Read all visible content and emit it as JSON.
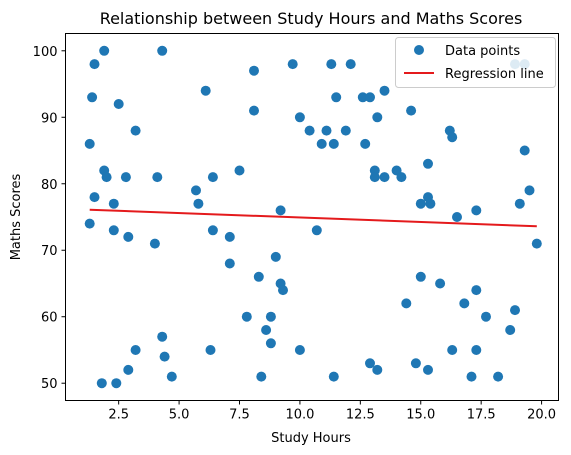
{
  "chart_data": {
    "type": "scatter",
    "title": "Relationship between Study Hours and Maths Scores",
    "xlabel": "Study Hours",
    "ylabel": "Maths Scores",
    "xlim": [
      0.3,
      20.7
    ],
    "ylim": [
      47.4,
      102.6
    ],
    "xticks": [
      2.5,
      5.0,
      7.5,
      10.0,
      12.5,
      15.0,
      17.5,
      20.0
    ],
    "xtick_labels": [
      "2.5",
      "5.0",
      "7.5",
      "10.0",
      "12.5",
      "15.0",
      "17.5",
      "20.0"
    ],
    "yticks": [
      50,
      60,
      70,
      80,
      90,
      100
    ],
    "ytick_labels": [
      "50",
      "60",
      "70",
      "80",
      "90",
      "100"
    ],
    "grid": false,
    "legend_position": "top-right",
    "series": [
      {
        "name": "Data points",
        "kind": "scatter",
        "color": "#1f77b4",
        "points": [
          [
            1.3,
            86
          ],
          [
            1.3,
            74
          ],
          [
            1.4,
            93
          ],
          [
            1.5,
            98
          ],
          [
            1.5,
            78
          ],
          [
            1.8,
            50
          ],
          [
            1.9,
            100
          ],
          [
            1.9,
            82
          ],
          [
            2.0,
            81
          ],
          [
            2.3,
            77
          ],
          [
            2.3,
            73
          ],
          [
            2.4,
            50
          ],
          [
            2.5,
            92
          ],
          [
            2.8,
            81
          ],
          [
            2.9,
            72
          ],
          [
            2.9,
            52
          ],
          [
            3.2,
            88
          ],
          [
            3.2,
            55
          ],
          [
            4.0,
            71
          ],
          [
            4.1,
            81
          ],
          [
            4.3,
            100
          ],
          [
            4.3,
            57
          ],
          [
            4.4,
            54
          ],
          [
            4.7,
            51
          ],
          [
            5.7,
            79
          ],
          [
            5.8,
            77
          ],
          [
            6.1,
            94
          ],
          [
            6.3,
            55
          ],
          [
            6.4,
            81
          ],
          [
            6.4,
            73
          ],
          [
            7.1,
            68
          ],
          [
            7.1,
            72
          ],
          [
            7.5,
            82
          ],
          [
            7.8,
            60
          ],
          [
            8.1,
            97
          ],
          [
            8.1,
            91
          ],
          [
            8.3,
            66
          ],
          [
            8.4,
            51
          ],
          [
            8.6,
            58
          ],
          [
            8.8,
            60
          ],
          [
            8.8,
            56
          ],
          [
            9.0,
            69
          ],
          [
            9.2,
            76
          ],
          [
            9.2,
            65
          ],
          [
            9.3,
            64
          ],
          [
            9.7,
            98
          ],
          [
            10.0,
            90
          ],
          [
            10.0,
            55
          ],
          [
            10.4,
            88
          ],
          [
            10.7,
            73
          ],
          [
            10.9,
            86
          ],
          [
            11.1,
            88
          ],
          [
            11.3,
            98
          ],
          [
            11.4,
            86
          ],
          [
            11.4,
            51
          ],
          [
            11.5,
            93
          ],
          [
            11.9,
            88
          ],
          [
            12.1,
            98
          ],
          [
            12.6,
            93
          ],
          [
            12.7,
            86
          ],
          [
            12.9,
            93
          ],
          [
            12.9,
            53
          ],
          [
            13.1,
            82
          ],
          [
            13.1,
            81
          ],
          [
            13.2,
            90
          ],
          [
            13.2,
            52
          ],
          [
            13.5,
            94
          ],
          [
            13.5,
            81
          ],
          [
            14.0,
            82
          ],
          [
            14.2,
            81
          ],
          [
            14.4,
            62
          ],
          [
            14.6,
            91
          ],
          [
            14.8,
            53
          ],
          [
            15.0,
            77
          ],
          [
            15.0,
            66
          ],
          [
            15.3,
            83
          ],
          [
            15.3,
            78
          ],
          [
            15.3,
            52
          ],
          [
            15.4,
            77
          ],
          [
            15.8,
            65
          ],
          [
            16.2,
            88
          ],
          [
            16.3,
            87
          ],
          [
            16.3,
            55
          ],
          [
            16.5,
            75
          ],
          [
            16.8,
            62
          ],
          [
            17.1,
            51
          ],
          [
            17.3,
            76
          ],
          [
            17.3,
            64
          ],
          [
            17.3,
            55
          ],
          [
            17.7,
            60
          ],
          [
            18.2,
            51
          ],
          [
            18.7,
            58
          ],
          [
            18.9,
            98
          ],
          [
            18.9,
            61
          ],
          [
            19.1,
            77
          ],
          [
            19.3,
            98
          ],
          [
            19.3,
            85
          ],
          [
            19.5,
            79
          ],
          [
            19.8,
            71
          ]
        ]
      },
      {
        "name": "Regression line",
        "kind": "line",
        "color": "#e41a1c",
        "x": [
          1.3,
          19.8
        ],
        "y": [
          76.1,
          73.6
        ]
      }
    ]
  }
}
